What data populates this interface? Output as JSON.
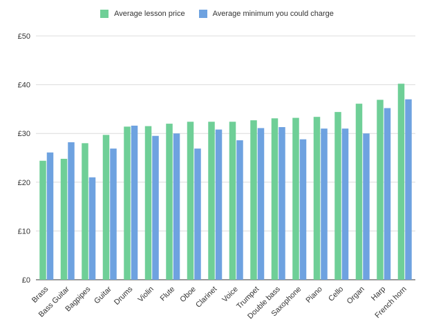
{
  "chart_data": {
    "type": "bar",
    "title": "",
    "xlabel": "",
    "ylabel": "",
    "ylim": [
      0,
      50
    ],
    "yticks": [
      "£0",
      "£10",
      "£20",
      "£30",
      "£40",
      "£50"
    ],
    "ytick_values": [
      0,
      10,
      20,
      30,
      40,
      50
    ],
    "grid": true,
    "legend_position": "top-center",
    "categories": [
      "Brass",
      "Bass Guitar",
      "Bagpipes",
      "Guitar",
      "Drums",
      "Violin",
      "Flute",
      "Oboe",
      "Clarinet",
      "Voice",
      "Trumpet",
      "Double bass",
      "Saxophone",
      "Piano",
      "Cello",
      "Organ",
      "Harp",
      "French horn"
    ],
    "series": [
      {
        "name": "Average lesson price",
        "color": "#6fcf97",
        "values": [
          24.4,
          24.8,
          28.0,
          29.7,
          31.4,
          31.5,
          32.0,
          32.4,
          32.4,
          32.4,
          32.7,
          33.1,
          33.2,
          33.4,
          34.4,
          36.1,
          36.9,
          40.2
        ]
      },
      {
        "name": "Average minimum you could charge",
        "color": "#6ea2e0",
        "values": [
          26.1,
          28.2,
          21.0,
          26.9,
          31.6,
          29.5,
          30.0,
          26.9,
          30.8,
          28.6,
          31.1,
          31.3,
          28.8,
          31.0,
          31.0,
          30.0,
          35.2,
          37.0
        ]
      }
    ]
  }
}
